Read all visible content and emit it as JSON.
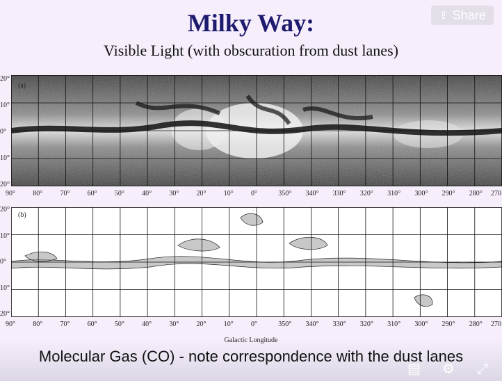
{
  "slide": {
    "title": "Milky Way:",
    "subtitle": "Visible Light (with obscuration from dust lanes)",
    "caption": "Molecular Gas (CO) - note correspondence with the dust lanes"
  },
  "panel_a": {
    "label": "(a)"
  },
  "panel_b": {
    "label": "(b)",
    "xlabel": "Galactic Longitude"
  },
  "axes": {
    "x_ticks": [
      "90°",
      "80°",
      "70°",
      "60°",
      "50°",
      "40°",
      "30°",
      "20°",
      "10°",
      "0°",
      "350°",
      "340°",
      "330°",
      "320°",
      "310°",
      "300°",
      "290°",
      "280°",
      "270"
    ],
    "y_ticks_a": [
      "20°",
      "10°",
      "0°",
      "10°",
      "20°"
    ],
    "y_ticks_b": [
      "20°",
      "10°",
      "0°",
      "10°",
      "20°"
    ]
  },
  "toolbar": {
    "share_label": "Share",
    "share_icon": "share-icon",
    "captions_icon": "captions-icon",
    "settings_icon": "gear-icon",
    "fullscreen_icon": "fullscreen-icon"
  }
}
